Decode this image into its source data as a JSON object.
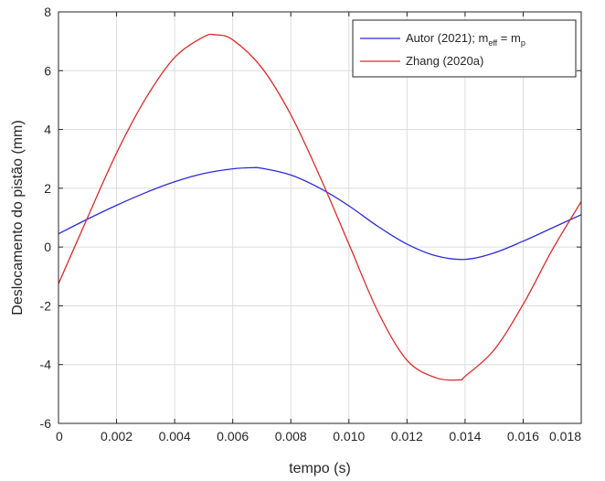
{
  "chart_data": {
    "type": "line",
    "xlabel": "tempo (s)",
    "ylabel": "Deslocamento do pistão (mm)",
    "xlim": [
      0,
      0.018
    ],
    "ylim": [
      -6,
      8
    ],
    "xticks": [
      0,
      0.002,
      0.004,
      0.006,
      0.008,
      0.01,
      0.012,
      0.014,
      0.016,
      0.018
    ],
    "xtick_labels": [
      "0",
      "0.002",
      "0.004",
      "0.006",
      "0.008",
      "0.010",
      "0.012",
      "0.014",
      "0.016",
      "0.018"
    ],
    "yticks": [
      -6,
      -4,
      -2,
      0,
      2,
      4,
      6,
      8
    ],
    "ytick_labels": [
      "-6",
      "-4",
      "-2",
      "0",
      "2",
      "4",
      "6",
      "8"
    ],
    "grid": true,
    "legend_position": "top-right",
    "series": [
      {
        "name": "Autor (2021); m_eff = m_p",
        "legend_main": "Autor (2021); m",
        "legend_sub1": "eff",
        "legend_mid": " = m",
        "legend_sub2": "p",
        "color": "#2b2bd9",
        "x": [
          0,
          0.001,
          0.002,
          0.003,
          0.004,
          0.005,
          0.006,
          0.0067,
          0.007,
          0.008,
          0.009,
          0.01,
          0.011,
          0.012,
          0.013,
          0.014,
          0.015,
          0.016,
          0.017,
          0.018
        ],
        "y": [
          0.45,
          0.95,
          1.42,
          1.85,
          2.22,
          2.5,
          2.66,
          2.7,
          2.68,
          2.45,
          2.0,
          1.4,
          0.7,
          0.1,
          -0.3,
          -0.42,
          -0.2,
          0.2,
          0.65,
          1.1
        ]
      },
      {
        "name": "Zhang (2020a)",
        "legend_main": "Zhang (2020a)",
        "color": "#d92b2b",
        "x": [
          0,
          0.001,
          0.002,
          0.003,
          0.004,
          0.005,
          0.0054,
          0.006,
          0.007,
          0.008,
          0.009,
          0.01,
          0.011,
          0.012,
          0.013,
          0.0138,
          0.014,
          0.015,
          0.016,
          0.017,
          0.018
        ],
        "y": [
          -1.25,
          1.0,
          3.2,
          5.05,
          6.45,
          7.15,
          7.22,
          7.05,
          6.1,
          4.5,
          2.4,
          0.1,
          -2.2,
          -3.85,
          -4.45,
          -4.52,
          -4.4,
          -3.5,
          -1.95,
          -0.1,
          1.55
        ]
      }
    ]
  }
}
